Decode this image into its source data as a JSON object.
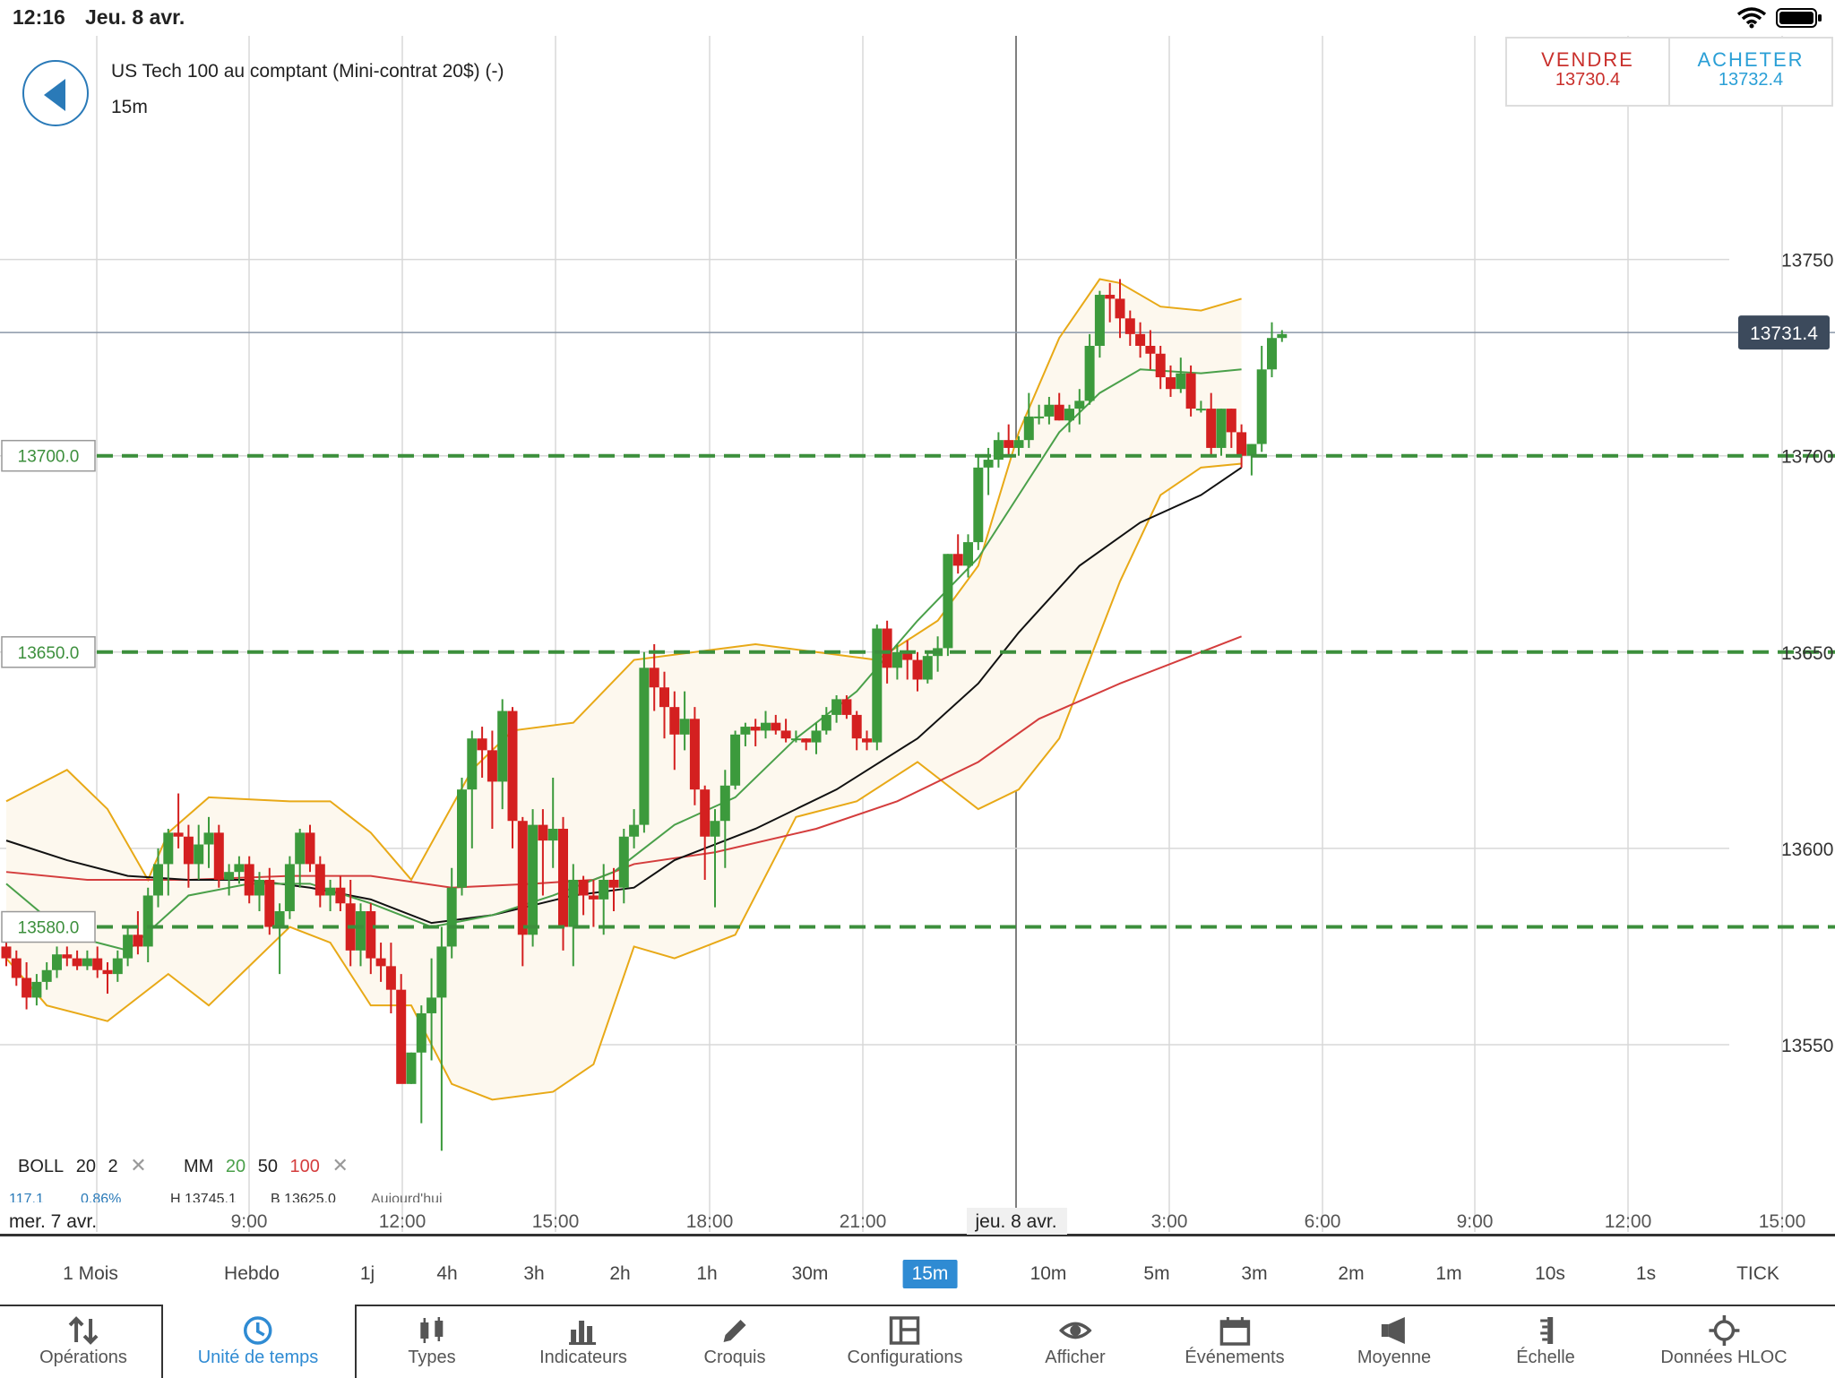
{
  "status_bar": {
    "time": "12:16",
    "date": "Jeu. 8 avr.",
    "icons": [
      "wifi-icon",
      "battery-icon"
    ]
  },
  "instrument": {
    "title": "US Tech 100 au comptant (Mini-contrat 20$) (-)",
    "timeframe": "15m"
  },
  "trade": {
    "sell_label": "VENDRE",
    "sell_price": "13730.4",
    "buy_label": "ACHETER",
    "buy_price": "13732.4"
  },
  "colors": {
    "bull": "#3c9a3c",
    "bear": "#d42020",
    "boll": "#e8a917",
    "ma20": "#4aa04a",
    "ma50": "#111111",
    "ma100": "#d43d3d",
    "level": "#3c8f3c",
    "accent": "#2f8bd3",
    "price_tag": "#3c4a5c"
  },
  "price_axis": {
    "ticks": [
      "13750.0",
      "13700.0",
      "13650.0",
      "13600.0",
      "13550.0"
    ],
    "current_price": "13731.4"
  },
  "levels": [
    "13700.0",
    "13650.0",
    "13580.0"
  ],
  "time_axis": {
    "labels": [
      "mer. 7 avr.",
      "9:00",
      "12:00",
      "15:00",
      "18:00",
      "21:00",
      "jeu. 8 avr.",
      "3:00",
      "6:00",
      "9:00",
      "12:00",
      "15:00"
    ]
  },
  "legend": {
    "boll": {
      "label": "BOLL",
      "period": "20",
      "dev": "2"
    },
    "ma": {
      "label": "MM",
      "p1": "20",
      "p2": "50",
      "p3": "100"
    },
    "info": [
      "117.1",
      "0.86%",
      "H 13745.1",
      "B 13625.0",
      "Aujourd'hui"
    ]
  },
  "timeframes": [
    {
      "label": "1 Mois"
    },
    {
      "label": "Hebdo"
    },
    {
      "label": "1j"
    },
    {
      "label": "4h"
    },
    {
      "label": "3h"
    },
    {
      "label": "2h"
    },
    {
      "label": "1h"
    },
    {
      "label": "30m"
    },
    {
      "label": "15m",
      "active": true
    },
    {
      "label": "10m"
    },
    {
      "label": "5m"
    },
    {
      "label": "3m"
    },
    {
      "label": "2m"
    },
    {
      "label": "1m"
    },
    {
      "label": "10s"
    },
    {
      "label": "1s"
    },
    {
      "label": "TICK"
    }
  ],
  "bottom_nav": [
    {
      "label": "Opérations",
      "icon": "arrows-updown-icon"
    },
    {
      "label": "Unité de temps",
      "icon": "clock-icon",
      "active": true
    },
    {
      "label": "Types",
      "icon": "candles-icon"
    },
    {
      "label": "Indicateurs",
      "icon": "bar-chart-icon"
    },
    {
      "label": "Croquis",
      "icon": "pencil-icon"
    },
    {
      "label": "Configurations",
      "icon": "layout-icon"
    },
    {
      "label": "Afficher",
      "icon": "eye-icon"
    },
    {
      "label": "Événements",
      "icon": "calendar-icon"
    },
    {
      "label": "Moyenne",
      "icon": "megaphone-icon"
    },
    {
      "label": "Échelle",
      "icon": "ruler-icon"
    },
    {
      "label": "Données HLOC",
      "icon": "crosshair-icon"
    }
  ],
  "chart_data": {
    "type": "candlestick",
    "y_range": [
      13525,
      13775
    ],
    "candles": [
      [
        13575,
        13578,
        13570,
        13572
      ],
      [
        13572,
        13574,
        13565,
        13567
      ],
      [
        13567,
        13571,
        13559,
        13562
      ],
      [
        13562,
        13568,
        13560,
        13566
      ],
      [
        13566,
        13571,
        13564,
        13569
      ],
      [
        13569,
        13575,
        13567,
        13573
      ],
      [
        13573,
        13575,
        13570,
        13572
      ],
      [
        13572,
        13574,
        13569,
        13570
      ],
      [
        13570,
        13574,
        13569,
        13572
      ],
      [
        13572,
        13575,
        13567,
        13569
      ],
      [
        13569,
        13571,
        13563,
        13568
      ],
      [
        13568,
        13574,
        13566,
        13572
      ],
      [
        13572,
        13580,
        13570,
        13578
      ],
      [
        13578,
        13584,
        13573,
        13575
      ],
      [
        13575,
        13590,
        13571,
        13588
      ],
      [
        13588,
        13600,
        13585,
        13596
      ],
      [
        13596,
        13605,
        13588,
        13604
      ],
      [
        13604,
        13614,
        13600,
        13603
      ],
      [
        13603,
        13606,
        13590,
        13596
      ],
      [
        13596,
        13606,
        13592,
        13601
      ],
      [
        13601,
        13608,
        13595,
        13604
      ],
      [
        13604,
        13606,
        13590,
        13592
      ],
      [
        13592,
        13596,
        13588,
        13594
      ],
      [
        13594,
        13598,
        13591,
        13596
      ],
      [
        13596,
        13598,
        13586,
        13588
      ],
      [
        13588,
        13594,
        13584,
        13592
      ],
      [
        13592,
        13595,
        13578,
        13580
      ],
      [
        13580,
        13586,
        13568,
        13584
      ],
      [
        13584,
        13598,
        13582,
        13596
      ],
      [
        13596,
        13605,
        13590,
        13604
      ],
      [
        13604,
        13606,
        13594,
        13596
      ],
      [
        13596,
        13598,
        13585,
        13588
      ],
      [
        13588,
        13592,
        13584,
        13590
      ],
      [
        13590,
        13593,
        13584,
        13586
      ],
      [
        13586,
        13592,
        13570,
        13574
      ],
      [
        13574,
        13586,
        13570,
        13584
      ],
      [
        13584,
        13586,
        13568,
        13572
      ],
      [
        13572,
        13576,
        13566,
        13570
      ],
      [
        13570,
        13576,
        13558,
        13564
      ],
      [
        13564,
        13568,
        13542,
        13540
      ],
      [
        13540,
        13548,
        13540,
        13548
      ],
      [
        13548,
        13560,
        13530,
        13558
      ],
      [
        13558,
        13572,
        13546,
        13562
      ],
      [
        13562,
        13580,
        13523,
        13575
      ],
      [
        13575,
        13595,
        13572,
        13590
      ],
      [
        13590,
        13618,
        13588,
        13615
      ],
      [
        13615,
        13630,
        13600,
        13628
      ],
      [
        13628,
        13631,
        13618,
        13625
      ],
      [
        13625,
        13630,
        13605,
        13617
      ],
      [
        13617,
        13638,
        13610,
        13635
      ],
      [
        13635,
        13636,
        13600,
        13607
      ],
      [
        13607,
        13608,
        13570,
        13578
      ],
      [
        13578,
        13610,
        13575,
        13606
      ],
      [
        13606,
        13610,
        13588,
        13602
      ],
      [
        13602,
        13618,
        13595,
        13605
      ],
      [
        13605,
        13608,
        13574,
        13580
      ],
      [
        13580,
        13596,
        13570,
        13592
      ],
      [
        13592,
        13593,
        13583,
        13588
      ],
      [
        13588,
        13592,
        13580,
        13587
      ],
      [
        13587,
        13596,
        13578,
        13592
      ],
      [
        13592,
        13595,
        13584,
        13590
      ],
      [
        13590,
        13605,
        13586,
        13603
      ],
      [
        13603,
        13610,
        13600,
        13606
      ],
      [
        13606,
        13650,
        13604,
        13646
      ],
      [
        13646,
        13652,
        13635,
        13641
      ],
      [
        13641,
        13645,
        13628,
        13636
      ],
      [
        13636,
        13640,
        13620,
        13629
      ],
      [
        13629,
        13640,
        13625,
        13633
      ],
      [
        13633,
        13636,
        13611,
        13615
      ],
      [
        13615,
        13616,
        13592,
        13603
      ],
      [
        13603,
        13610,
        13585,
        13607
      ],
      [
        13607,
        13620,
        13595,
        13616
      ],
      [
        13616,
        13630,
        13615,
        13629
      ],
      [
        13629,
        13632,
        13626,
        13631
      ],
      [
        13631,
        13633,
        13626,
        13630
      ],
      [
        13630,
        13635,
        13628,
        13632
      ],
      [
        13632,
        13634,
        13629,
        13630
      ],
      [
        13630,
        13633,
        13627,
        13628
      ],
      [
        13628,
        13630,
        13627,
        13628
      ],
      [
        13628,
        13628,
        13625,
        13627
      ],
      [
        13627,
        13632,
        13624,
        13630
      ],
      [
        13630,
        13636,
        13629,
        13634
      ],
      [
        13634,
        13639,
        13632,
        13638
      ],
      [
        13638,
        13639,
        13633,
        13634
      ],
      [
        13634,
        13635,
        13625,
        13628
      ],
      [
        13628,
        13630,
        13625,
        13627
      ],
      [
        13627,
        13657,
        13625,
        13656
      ],
      [
        13656,
        13658,
        13642,
        13646
      ],
      [
        13646,
        13652,
        13643,
        13650
      ],
      [
        13650,
        13653,
        13643,
        13648
      ],
      [
        13648,
        13650,
        13640,
        13643
      ],
      [
        13643,
        13650,
        13642,
        13649
      ],
      [
        13649,
        13654,
        13645,
        13651
      ],
      [
        13651,
        13675,
        13649,
        13675
      ],
      [
        13675,
        13680,
        13670,
        13672
      ],
      [
        13672,
        13680,
        13669,
        13678
      ],
      [
        13678,
        13700,
        13676,
        13697
      ],
      [
        13697,
        13702,
        13690,
        13699
      ],
      [
        13699,
        13706,
        13697,
        13704
      ],
      [
        13704,
        13708,
        13700,
        13702
      ],
      [
        13702,
        13705,
        13700,
        13704
      ],
      [
        13704,
        13716,
        13702,
        13710
      ],
      [
        13710,
        13713,
        13708,
        13710
      ],
      [
        13710,
        13715,
        13708,
        13713
      ],
      [
        13713,
        13716,
        13709,
        13709
      ],
      [
        13709,
        13713,
        13706,
        13712
      ],
      [
        13712,
        13717,
        13708,
        13714
      ],
      [
        13714,
        13731,
        13713,
        13728
      ],
      [
        13728,
        13742,
        13725,
        13741
      ],
      [
        13741,
        13744,
        13734,
        13740
      ],
      [
        13740,
        13745,
        13730,
        13735
      ],
      [
        13735,
        13737,
        13728,
        13731
      ],
      [
        13731,
        13734,
        13725,
        13728
      ],
      [
        13728,
        13732,
        13722,
        13726
      ],
      [
        13726,
        13728,
        13717,
        13720
      ],
      [
        13720,
        13723,
        13715,
        13717
      ],
      [
        13717,
        13725,
        13716,
        13721
      ],
      [
        13721,
        13723,
        13710,
        13712
      ],
      [
        13712,
        13714,
        13711,
        13712
      ],
      [
        13712,
        13716,
        13700,
        13702
      ],
      [
        13702,
        13712,
        13700,
        13712
      ],
      [
        13712,
        13712,
        13702,
        13706
      ],
      [
        13706,
        13708,
        13697,
        13700
      ],
      [
        13700,
        13703,
        13695,
        13703
      ],
      [
        13703,
        13728,
        13701,
        13722
      ],
      [
        13722,
        13734,
        13720,
        13730
      ],
      [
        13730,
        13732,
        13729,
        13731
      ]
    ],
    "boll_upper": [
      [
        0,
        13612
      ],
      [
        6,
        13620
      ],
      [
        10,
        13610
      ],
      [
        14,
        13592
      ],
      [
        16,
        13604
      ],
      [
        20,
        13613
      ],
      [
        28,
        13612
      ],
      [
        32,
        13612
      ],
      [
        36,
        13604
      ],
      [
        40,
        13592
      ],
      [
        46,
        13620
      ],
      [
        50,
        13630
      ],
      [
        56,
        13632
      ],
      [
        62,
        13648
      ],
      [
        68,
        13650
      ],
      [
        74,
        13652
      ],
      [
        80,
        13650
      ],
      [
        86,
        13648
      ],
      [
        92,
        13658
      ],
      [
        96,
        13672
      ],
      [
        100,
        13706
      ],
      [
        104,
        13730
      ],
      [
        108,
        13745
      ],
      [
        110,
        13744
      ],
      [
        114,
        13738
      ],
      [
        118,
        13737
      ],
      [
        122,
        13740
      ]
    ],
    "boll_lower": [
      [
        0,
        13572
      ],
      [
        4,
        13560
      ],
      [
        10,
        13556
      ],
      [
        16,
        13568
      ],
      [
        20,
        13560
      ],
      [
        28,
        13580
      ],
      [
        32,
        13576
      ],
      [
        36,
        13560
      ],
      [
        40,
        13560
      ],
      [
        44,
        13540
      ],
      [
        48,
        13536
      ],
      [
        54,
        13538
      ],
      [
        58,
        13545
      ],
      [
        62,
        13575
      ],
      [
        66,
        13572
      ],
      [
        72,
        13578
      ],
      [
        78,
        13608
      ],
      [
        84,
        13612
      ],
      [
        90,
        13622
      ],
      [
        96,
        13610
      ],
      [
        100,
        13615
      ],
      [
        104,
        13628
      ],
      [
        110,
        13668
      ],
      [
        114,
        13690
      ],
      [
        118,
        13697
      ],
      [
        122,
        13698
      ]
    ],
    "ma20": [
      [
        0,
        13591
      ],
      [
        6,
        13578
      ],
      [
        12,
        13574
      ],
      [
        18,
        13588
      ],
      [
        24,
        13591
      ],
      [
        30,
        13591
      ],
      [
        36,
        13586
      ],
      [
        42,
        13580
      ],
      [
        48,
        13583
      ],
      [
        54,
        13588
      ],
      [
        60,
        13594
      ],
      [
        66,
        13606
      ],
      [
        72,
        13613
      ],
      [
        78,
        13628
      ],
      [
        84,
        13640
      ],
      [
        90,
        13658
      ],
      [
        96,
        13674
      ],
      [
        100,
        13690
      ],
      [
        104,
        13706
      ],
      [
        108,
        13716
      ],
      [
        112,
        13722
      ],
      [
        118,
        13721
      ],
      [
        122,
        13722
      ]
    ],
    "ma50": [
      [
        0,
        13602
      ],
      [
        6,
        13597
      ],
      [
        12,
        13593
      ],
      [
        18,
        13592
      ],
      [
        24,
        13592
      ],
      [
        30,
        13590
      ],
      [
        36,
        13587
      ],
      [
        42,
        13581
      ],
      [
        48,
        13583
      ],
      [
        56,
        13588
      ],
      [
        62,
        13590
      ],
      [
        66,
        13597
      ],
      [
        74,
        13605
      ],
      [
        82,
        13615
      ],
      [
        90,
        13628
      ],
      [
        96,
        13642
      ],
      [
        100,
        13655
      ],
      [
        106,
        13672
      ],
      [
        112,
        13683
      ],
      [
        118,
        13690
      ],
      [
        122,
        13697
      ]
    ],
    "ma100": [
      [
        0,
        13594
      ],
      [
        8,
        13592
      ],
      [
        18,
        13592
      ],
      [
        28,
        13593
      ],
      [
        36,
        13593
      ],
      [
        44,
        13590
      ],
      [
        52,
        13591
      ],
      [
        58,
        13592
      ],
      [
        62,
        13596
      ],
      [
        70,
        13599
      ],
      [
        80,
        13605
      ],
      [
        88,
        13612
      ],
      [
        96,
        13622
      ],
      [
        102,
        13633
      ],
      [
        110,
        13642
      ],
      [
        118,
        13650
      ],
      [
        122,
        13654
      ]
    ]
  }
}
